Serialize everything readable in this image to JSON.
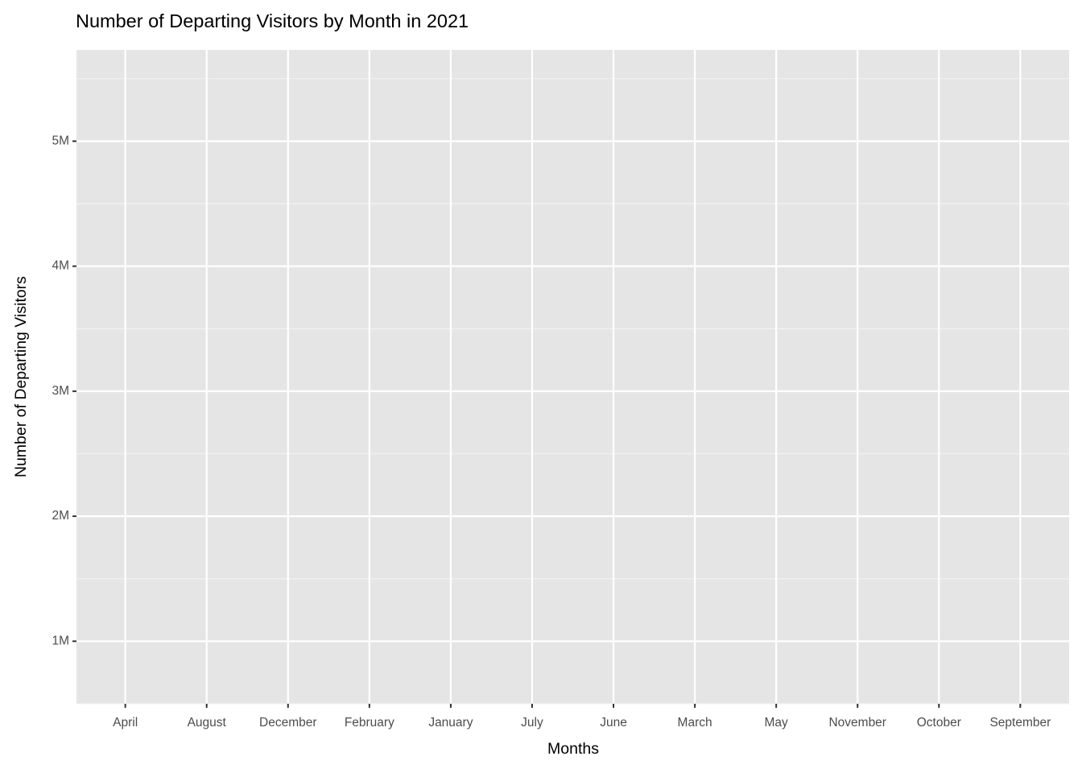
{
  "chart_data": {
    "type": "bar",
    "title": "Number of Departing Visitors by Month in 2021",
    "x_label": "Months",
    "y_label": "Number of Departing Visitors",
    "categories": [
      "April",
      "August",
      "December",
      "February",
      "January",
      "July",
      "June",
      "March",
      "May",
      "November",
      "October",
      "September"
    ],
    "ylim": [
      500000,
      5730000
    ],
    "yticks": [
      {
        "value": 1000000,
        "label": "1M"
      },
      {
        "value": 2000000,
        "label": "2M"
      },
      {
        "value": 3000000,
        "label": "3M"
      },
      {
        "value": 4000000,
        "label": "4M"
      },
      {
        "value": 5000000,
        "label": "5M"
      }
    ],
    "grid": true
  }
}
